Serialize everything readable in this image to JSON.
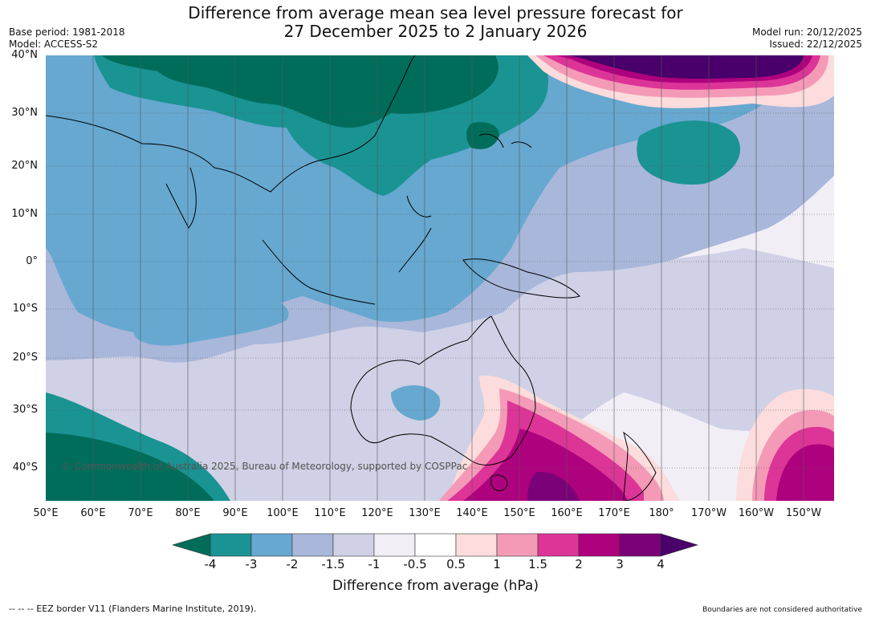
{
  "header": {
    "title_line1": "Difference from average mean sea level pressure forecast for",
    "title_line2": "27 December 2025 to 2 January 2026",
    "base_period": "Base period: 1981-2018",
    "model": "Model: ACCESS-S2",
    "model_run": "Model run: 20/12/2025",
    "issued": "Issued: 22/12/2025"
  },
  "map": {
    "copyright": "© Commonwealth of Australia 2025, Bureau of Meteorology, supported by COSPPac",
    "lat_labels": [
      "40°N",
      "30°N",
      "20°N",
      "10°N",
      "0°",
      "10°S",
      "20°S",
      "30°S",
      "40°S"
    ],
    "lon_labels": [
      "50°E",
      "60°E",
      "70°E",
      "80°E",
      "90°E",
      "100°E",
      "110°E",
      "120°E",
      "130°E",
      "140°E",
      "150°E",
      "160°E",
      "170°E",
      "180°",
      "170°W",
      "160°W",
      "150°W"
    ]
  },
  "colorbar": {
    "title": "Difference from average (hPa)",
    "labels": [
      "-4",
      "-3",
      "-2",
      "-1.5",
      "-1",
      "-0.5",
      "0.5",
      "1",
      "1.5",
      "2",
      "3",
      "4"
    ],
    "colors": [
      "#1a9393",
      "#66a8d0",
      "#a9b7da",
      "#d0d1e6",
      "#f2eef6",
      "#ffffff",
      "#fcdcdc",
      "#f49ab7",
      "#dd3497",
      "#ae017e",
      "#7a0177"
    ],
    "under_color": "#006d5b",
    "over_color": "#49006a"
  },
  "footer": {
    "eez_note": "--  --  -- EEZ border V11 (Flanders Marine Institute, 2019).",
    "disclaimer": "Boundaries are not considered authoritative"
  }
}
